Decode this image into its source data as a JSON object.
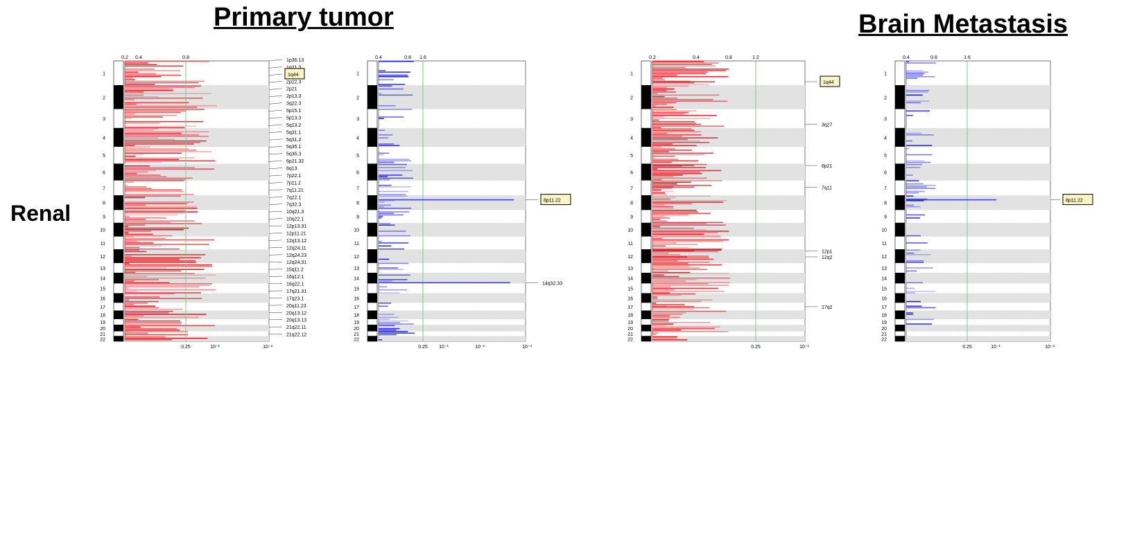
{
  "titles": {
    "primary": "Primary tumor",
    "metastasis": "Brain Metastasis"
  },
  "row_label": "Renal",
  "colors": {
    "amplification": "#e8141b",
    "deletion": "#1a1aee",
    "threshold_line": "#7dc97d",
    "band_stripe": "#e2e2e2",
    "callout_fill": "#fbf4c4"
  },
  "chart_data": [
    {
      "type": "bar",
      "panel": "primary-amplification",
      "chromosomes": [
        "1",
        "2",
        "3",
        "4",
        "5",
        "6",
        "7",
        "8",
        "9",
        "10",
        "11",
        "12",
        "13",
        "14",
        "15",
        "16",
        "17",
        "18",
        "19",
        "20",
        "21",
        "22"
      ],
      "top_ticks": [
        "0.2",
        "0.4",
        "0.8"
      ],
      "bottom_ticks": [
        "0.25",
        "10⁻¹",
        "10⁻²"
      ],
      "peak_labels": [
        "1p36.13",
        "1q21.3",
        "1q44",
        "2p22.3",
        "2p21",
        "2p13.3",
        "3q22.3",
        "5p15.1",
        "5p13.3",
        "5q13.2",
        "5q31.1",
        "5q31.2",
        "5q35.1",
        "5q35.3",
        "6p21.32",
        "6q13",
        "7p22.1",
        "7p11.2",
        "7q11.21",
        "7q22.1",
        "7q32.3",
        "10q21.3",
        "10q22.1",
        "12p13.31",
        "12p11.21",
        "12q13.12",
        "12q24.11",
        "12q24.23",
        "12q24.31",
        "15q11.2",
        "16q12.1",
        "16q22.1",
        "17q21.31",
        "17q23.1",
        "20q11.23",
        "20q13.12",
        "20q13.13",
        "21q22.11",
        "21q22.12"
      ],
      "highlight": "1q44"
    },
    {
      "type": "bar",
      "panel": "primary-deletion",
      "chromosomes": [
        "1",
        "2",
        "3",
        "4",
        "5",
        "6",
        "7",
        "8",
        "9",
        "10",
        "11",
        "12",
        "13",
        "14",
        "15",
        "16",
        "17",
        "18",
        "19",
        "20",
        "21",
        "22"
      ],
      "top_ticks": [
        "0.4",
        "0.8",
        "1.6"
      ],
      "bottom_ticks": [
        "0.25",
        "10⁻¹",
        "10⁻²",
        "10⁻³"
      ],
      "peak_labels": [
        "8p11.22",
        "14q32.33"
      ],
      "highlight": "8p11.22"
    },
    {
      "type": "bar",
      "panel": "metastasis-amplification",
      "chromosomes": [
        "1",
        "2",
        "3",
        "4",
        "5",
        "6",
        "7",
        "8",
        "9",
        "10",
        "11",
        "12",
        "13",
        "14",
        "15",
        "16",
        "17",
        "18",
        "19",
        "20",
        "21",
        "22"
      ],
      "top_ticks": [
        "0.2",
        "0.4",
        "0.8",
        "1.2"
      ],
      "bottom_ticks": [
        "0.25",
        "10⁻¹"
      ],
      "peak_labels": [
        "1q44",
        "3q27",
        "6p21",
        "7q11",
        "12p1",
        "12q2",
        "17q2"
      ],
      "highlight": "1q44"
    },
    {
      "type": "bar",
      "panel": "metastasis-deletion",
      "chromosomes": [
        "1",
        "2",
        "3",
        "4",
        "5",
        "6",
        "7",
        "8",
        "9",
        "10",
        "11",
        "12",
        "13",
        "14",
        "15",
        "16",
        "17",
        "18",
        "19",
        "20",
        "21",
        "22"
      ],
      "top_ticks": [
        "0.4",
        "0.8",
        "1.6"
      ],
      "bottom_ticks": [
        "0.25",
        "10⁻¹",
        "10⁻²"
      ],
      "peak_labels": [
        "8p11.22"
      ],
      "highlight": "8p11.22"
    }
  ]
}
